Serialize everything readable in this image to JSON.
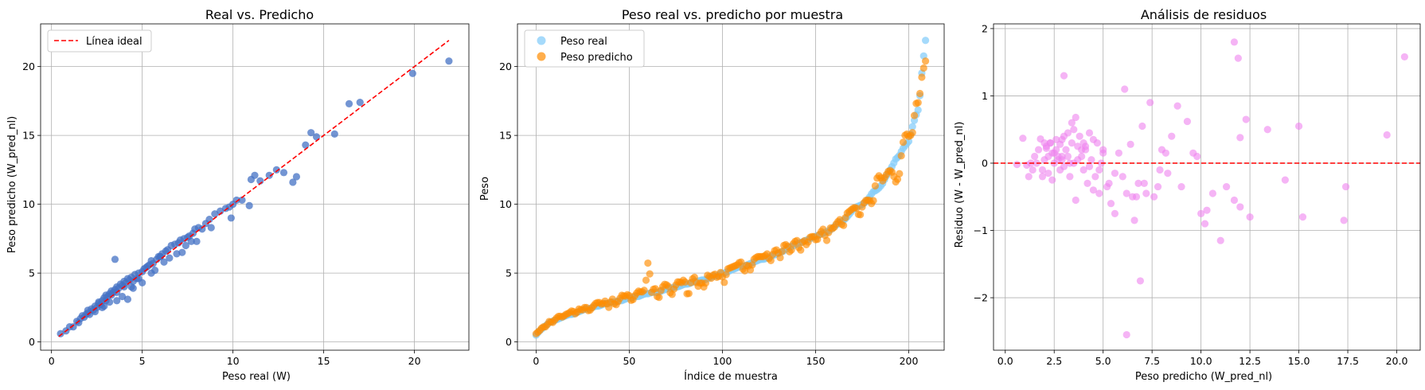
{
  "chart_data": [
    {
      "type": "scatter",
      "title": "Real vs. Predicho",
      "xlabel": "Peso real (W)",
      "ylabel": "Peso predicho (W_pred_nl)",
      "xlim": [
        -0.6,
        23.0
      ],
      "ylim": [
        -0.6,
        23.1
      ],
      "xticks": [
        0,
        5,
        10,
        15,
        20
      ],
      "yticks": [
        0,
        5,
        10,
        15,
        20
      ],
      "grid": true,
      "legend_position": "upper-left",
      "legend": [
        "Línea ideal"
      ],
      "colors": {
        "points": "#4472c4",
        "ideal_line": "#ff0000"
      },
      "ideal_line": {
        "from": 0.4,
        "to": 21.9
      },
      "series": [
        {
          "x": [
            0.5,
            0.8,
            1.0,
            1.2,
            1.4,
            1.6,
            1.7,
            1.8,
            1.9,
            2.0,
            2.0,
            2.1,
            2.2,
            2.3,
            2.4,
            2.5,
            2.6,
            2.6,
            2.7,
            2.8,
            2.9,
            3.0,
            3.0,
            3.1,
            3.2,
            3.3,
            3.3,
            3.4,
            3.5,
            3.6,
            3.6,
            3.7,
            3.8,
            3.9,
            4.0,
            4.0,
            4.1,
            4.2,
            4.3,
            4.4,
            4.5,
            4.6,
            4.7,
            4.8,
            5.0,
            5.1,
            5.2,
            5.3,
            5.4,
            5.5,
            5.6,
            5.8,
            5.9,
            6.0,
            6.1,
            6.3,
            6.4,
            6.6,
            6.8,
            7.0,
            7.1,
            7.3,
            7.5,
            7.6,
            7.8,
            7.9,
            8.1,
            8.3,
            8.5,
            8.7,
            9.0,
            9.3,
            9.6,
            9.8,
            10.0,
            10.2,
            10.5,
            11.0,
            11.2,
            11.5,
            12.0,
            12.4,
            12.8,
            13.3,
            13.5,
            14.0,
            14.3,
            14.6,
            15.6,
            16.4,
            17.0,
            19.9,
            21.9,
            3.5,
            4.2,
            6.0,
            7.2,
            8.0,
            9.9,
            5.0,
            4.5,
            2.8,
            3.9,
            6.5,
            7.4,
            8.8,
            10.9,
            4.8,
            5.7,
            6.9,
            3.2,
            2.4,
            1.5,
            2.9,
            4.4,
            5.5,
            6.2,
            7.7,
            3.6
          ],
          "y": [
            0.6,
            0.8,
            1.1,
            1.1,
            1.5,
            1.7,
            1.9,
            1.8,
            2.0,
            2.1,
            2.3,
            2.0,
            2.4,
            2.3,
            2.6,
            2.5,
            2.8,
            2.9,
            2.7,
            3.0,
            3.2,
            3.0,
            3.4,
            3.3,
            3.5,
            3.4,
            3.7,
            3.6,
            3.8,
            3.6,
            4.0,
            3.9,
            4.2,
            4.1,
            4.0,
            4.4,
            4.3,
            4.6,
            4.5,
            4.7,
            4.4,
            4.9,
            4.6,
            5.0,
            5.1,
            5.3,
            5.4,
            5.5,
            5.6,
            5.9,
            5.7,
            6.0,
            6.2,
            6.2,
            6.4,
            6.6,
            6.7,
            7.0,
            7.1,
            7.2,
            7.4,
            7.5,
            7.6,
            7.7,
            7.9,
            8.2,
            8.3,
            8.2,
            8.6,
            8.9,
            9.3,
            9.5,
            9.7,
            9.8,
            10.0,
            10.3,
            10.3,
            11.8,
            12.1,
            11.7,
            12.1,
            12.5,
            12.3,
            11.6,
            12.0,
            14.3,
            15.2,
            14.9,
            15.1,
            17.3,
            17.4,
            19.5,
            20.4,
            6.0,
            3.1,
            6.2,
            6.5,
            7.3,
            9.0,
            4.3,
            3.9,
            2.5,
            3.3,
            6.1,
            7.0,
            8.3,
            9.9,
            4.6,
            5.2,
            6.4,
            2.9,
            2.2,
            1.4,
            2.6,
            4.0,
            5.0,
            5.8,
            7.3,
            3.0
          ]
        }
      ]
    },
    {
      "type": "scatter",
      "title": "Peso real vs. predicho por muestra",
      "xlabel": "Índice de muestra",
      "ylabel": "Peso",
      "xlim": [
        -10,
        219
      ],
      "ylim": [
        -0.6,
        23.1
      ],
      "xticks": [
        0,
        50,
        100,
        150,
        200
      ],
      "yticks": [
        0,
        5,
        10,
        15,
        20
      ],
      "grid": true,
      "legend_position": "upper-left",
      "colors": {
        "Peso real": "#87cefa",
        "Peso predicho": "#ff8c00"
      },
      "series": [
        {
          "name": "Peso real"
        },
        {
          "name": "Peso predicho"
        }
      ],
      "sample_count": 210
    },
    {
      "type": "scatter",
      "title": "Análisis de residuos",
      "xlabel": "Peso predicho (W_pred_nl)",
      "ylabel": "Residuo (W - W_pred_nl)",
      "xlim": [
        -0.6,
        21.2
      ],
      "ylim": [
        -2.78,
        2.07
      ],
      "xticks": [
        0.0,
        2.5,
        5.0,
        7.5,
        10.0,
        12.5,
        15.0,
        17.5,
        20.0
      ],
      "xtick_labels": [
        "0.0",
        "2.5",
        "5.0",
        "7.5",
        "10.0",
        "12.5",
        "15.0",
        "17.5",
        "20.0"
      ],
      "yticks": [
        -2,
        -1,
        0,
        1,
        2
      ],
      "ytick_labels": [
        "−2",
        "−1",
        "0",
        "1",
        "2"
      ],
      "grid": true,
      "zero_line": 0,
      "colors": {
        "points": "#ee82ee",
        "zero_line": "#ff0000"
      },
      "series": [
        {
          "x": [
            0.6,
            0.9,
            1.1,
            1.2,
            1.4,
            1.5,
            1.6,
            1.7,
            1.8,
            1.9,
            2.0,
            2.0,
            2.1,
            2.2,
            2.2,
            2.3,
            2.4,
            2.4,
            2.5,
            2.6,
            2.6,
            2.7,
            2.8,
            2.8,
            2.9,
            3.0,
            3.0,
            3.1,
            3.2,
            3.2,
            3.3,
            3.4,
            3.4,
            3.5,
            3.6,
            3.6,
            3.7,
            3.8,
            3.9,
            4.0,
            4.0,
            4.1,
            4.2,
            4.3,
            4.4,
            4.5,
            4.6,
            4.7,
            4.8,
            4.9,
            5.0,
            5.2,
            5.4,
            5.6,
            5.8,
            6.0,
            6.2,
            6.4,
            6.6,
            6.8,
            7.0,
            7.2,
            7.4,
            7.6,
            7.8,
            8.0,
            8.2,
            8.5,
            8.8,
            9.0,
            9.3,
            9.6,
            10.0,
            10.3,
            10.6,
            11.0,
            11.3,
            11.7,
            11.9,
            12.0,
            12.3,
            12.5,
            13.4,
            14.3,
            15.0,
            15.2,
            17.3,
            17.4,
            19.5,
            20.4,
            3.0,
            6.1,
            6.2,
            11.7,
            12.0,
            4.5,
            3.3,
            2.7,
            5.3,
            7.9,
            9.8,
            10.2,
            6.7,
            5.0,
            4.1,
            3.7,
            2.9,
            2.3,
            1.9,
            2.5,
            3.5,
            4.3,
            5.6,
            6.9,
            7.1,
            8.3,
            2.1,
            2.9,
            3.9,
            4.8,
            1.3,
            6.5
          ],
          "y": [
            -0.02,
            0.37,
            -0.03,
            -0.2,
            -0.1,
            0.1,
            0.0,
            0.2,
            0.36,
            -0.1,
            0.3,
            0.05,
            0.25,
            -0.15,
            0.1,
            0.3,
            -0.25,
            0.15,
            0.0,
            0.35,
            0.2,
            0.1,
            -0.1,
            0.28,
            0.05,
            0.4,
            -0.05,
            0.2,
            0.1,
            0.45,
            -0.2,
            0.3,
            0.6,
            0.0,
            0.68,
            -0.55,
            0.25,
            0.4,
            0.1,
            -0.1,
            0.3,
            0.2,
            -0.3,
            0.45,
            0.05,
            0.35,
            -0.2,
            0.3,
            -0.1,
            0.0,
            0.15,
            -0.35,
            -0.6,
            -0.75,
            0.15,
            -0.2,
            -0.45,
            0.28,
            -0.85,
            -0.3,
            0.55,
            -0.45,
            0.9,
            -0.5,
            -0.35,
            0.2,
            0.15,
            0.4,
            0.85,
            -0.35,
            0.62,
            0.15,
            -0.75,
            -0.7,
            -0.45,
            -1.15,
            -0.35,
            1.8,
            1.56,
            0.38,
            0.65,
            -0.8,
            0.5,
            -0.25,
            0.55,
            -0.8,
            -0.85,
            -0.35,
            0.42,
            1.58,
            1.3,
            1.1,
            -2.55,
            -0.55,
            -0.65,
            -0.4,
            0.0,
            0.05,
            -0.3,
            -0.1,
            0.1,
            -0.9,
            -0.5,
            0.2,
            0.25,
            0.05,
            0.1,
            0.3,
            -0.2,
            0.15,
            0.5,
            -0.05,
            -0.15,
            -1.75,
            -0.3,
            -0.15,
            0.22,
            0.35,
            0.2,
            -0.45,
            0.0,
            -0.5
          ]
        }
      ]
    }
  ]
}
